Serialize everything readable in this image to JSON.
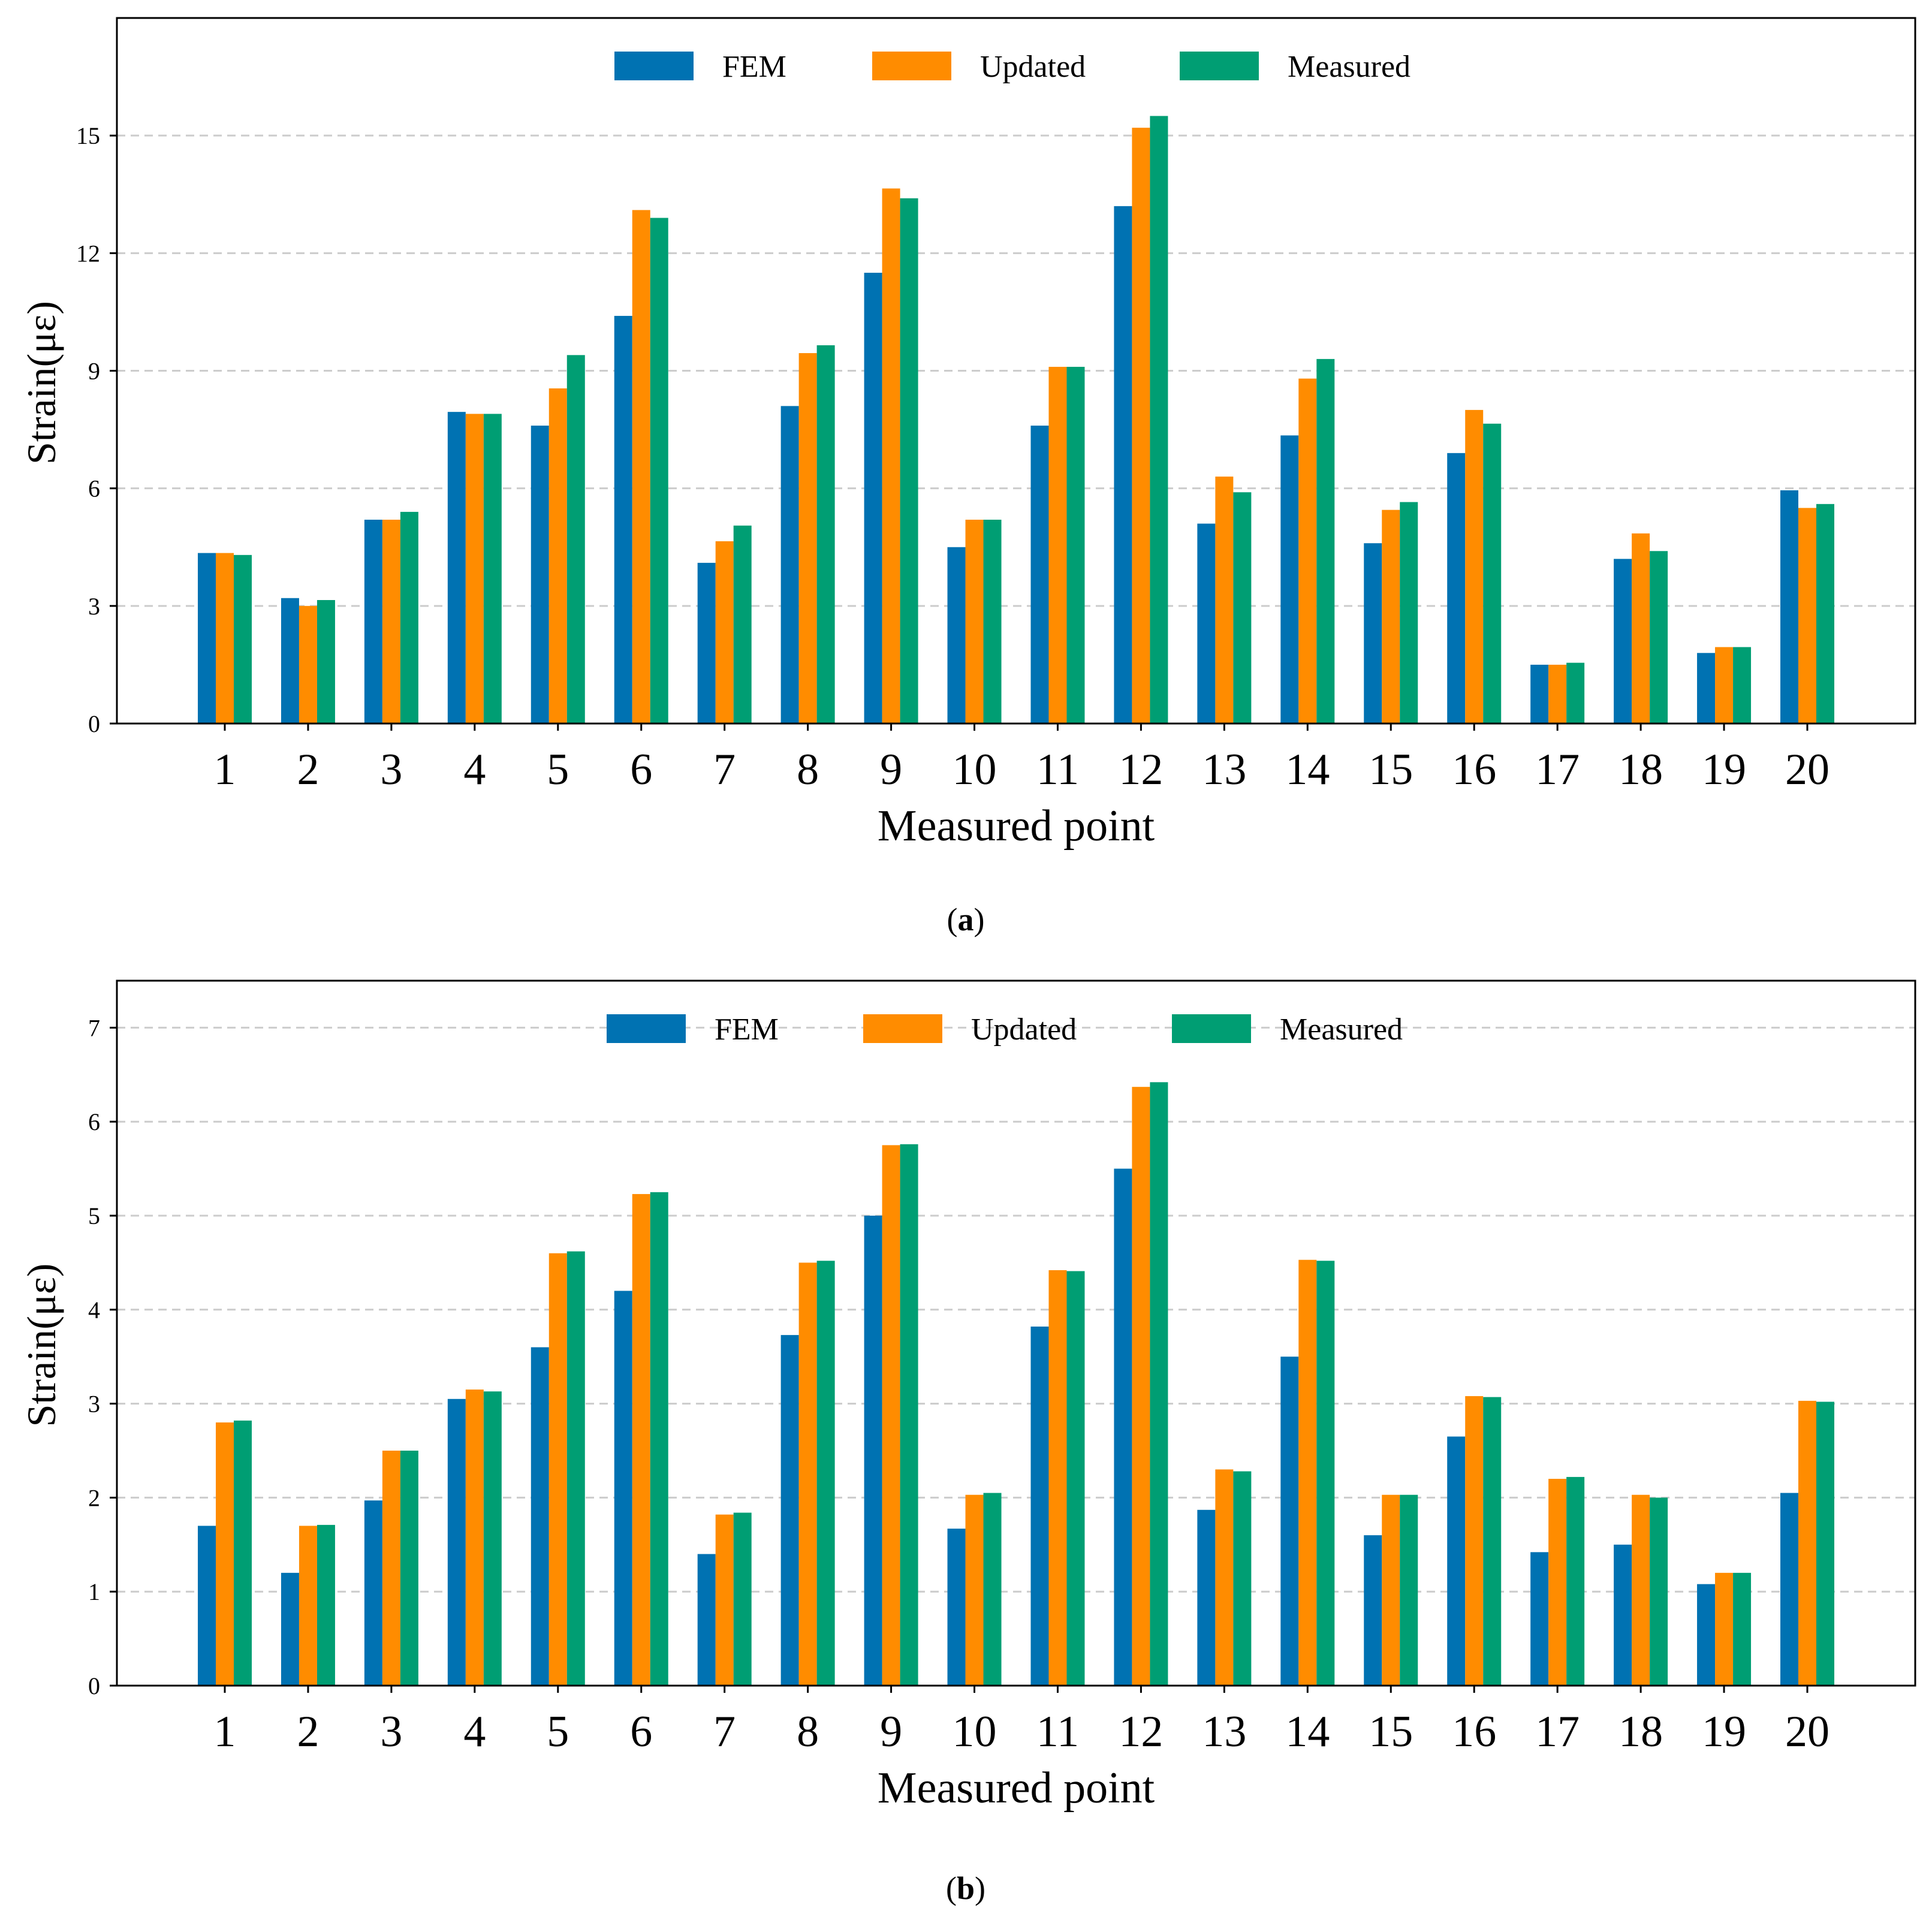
{
  "figure": {
    "caption_a": "a",
    "caption_b": "b"
  },
  "chart_data": [
    {
      "type": "bar",
      "panel": "a",
      "xlabel": "Measured point",
      "ylabel": "Strain(με)",
      "ylim": [
        0,
        18
      ],
      "yticks": [
        0,
        3,
        6,
        9,
        12,
        15
      ],
      "grid": true,
      "legend_position": "top-center",
      "categories": [
        "1",
        "2",
        "3",
        "4",
        "5",
        "6",
        "7",
        "8",
        "9",
        "10",
        "11",
        "12",
        "13",
        "14",
        "15",
        "16",
        "17",
        "18",
        "19",
        "20"
      ],
      "series": [
        {
          "name": "FEM",
          "color": "#0072B2",
          "values": [
            4.35,
            3.2,
            5.2,
            7.95,
            7.6,
            10.4,
            4.1,
            8.1,
            11.5,
            4.5,
            7.6,
            13.2,
            5.1,
            7.35,
            4.6,
            6.9,
            1.5,
            4.2,
            1.8,
            5.95
          ]
        },
        {
          "name": "Updated",
          "color": "#FF8C00",
          "values": [
            4.35,
            3.0,
            5.2,
            7.9,
            8.55,
            13.1,
            4.65,
            9.45,
            13.65,
            5.2,
            9.1,
            15.2,
            6.3,
            8.8,
            5.45,
            8.0,
            1.5,
            4.85,
            1.95,
            5.5
          ]
        },
        {
          "name": "Measured",
          "color": "#009E73",
          "values": [
            4.3,
            3.15,
            5.4,
            7.9,
            9.4,
            12.9,
            5.05,
            9.65,
            13.4,
            5.2,
            9.1,
            15.5,
            5.9,
            9.3,
            5.65,
            7.65,
            1.55,
            4.4,
            1.95,
            5.6
          ]
        }
      ]
    },
    {
      "type": "bar",
      "panel": "b",
      "xlabel": "Measured point",
      "ylabel": "Strain(με)",
      "ylim": [
        0,
        7.5
      ],
      "yticks": [
        0,
        1,
        2,
        3,
        4,
        5,
        6,
        7
      ],
      "grid": true,
      "legend_position": "top-center",
      "categories": [
        "1",
        "2",
        "3",
        "4",
        "5",
        "6",
        "7",
        "8",
        "9",
        "10",
        "11",
        "12",
        "13",
        "14",
        "15",
        "16",
        "17",
        "18",
        "19",
        "20"
      ],
      "series": [
        {
          "name": "FEM",
          "color": "#0072B2",
          "values": [
            1.7,
            1.2,
            1.97,
            3.05,
            3.6,
            4.2,
            1.4,
            3.73,
            5.0,
            1.67,
            3.82,
            5.5,
            1.87,
            3.5,
            1.6,
            2.65,
            1.42,
            1.5,
            1.08,
            2.05
          ]
        },
        {
          "name": "Updated",
          "color": "#FF8C00",
          "values": [
            2.8,
            1.7,
            2.5,
            3.15,
            4.6,
            5.23,
            1.82,
            4.5,
            5.75,
            2.03,
            4.42,
            6.37,
            2.3,
            4.53,
            2.03,
            3.08,
            2.2,
            2.03,
            1.2,
            3.03
          ]
        },
        {
          "name": "Measured",
          "color": "#009E73",
          "values": [
            2.82,
            1.71,
            2.5,
            3.13,
            4.62,
            5.25,
            1.84,
            4.52,
            5.76,
            2.05,
            4.41,
            6.42,
            2.28,
            4.52,
            2.03,
            3.07,
            2.22,
            2.0,
            1.2,
            3.02
          ]
        }
      ]
    }
  ]
}
